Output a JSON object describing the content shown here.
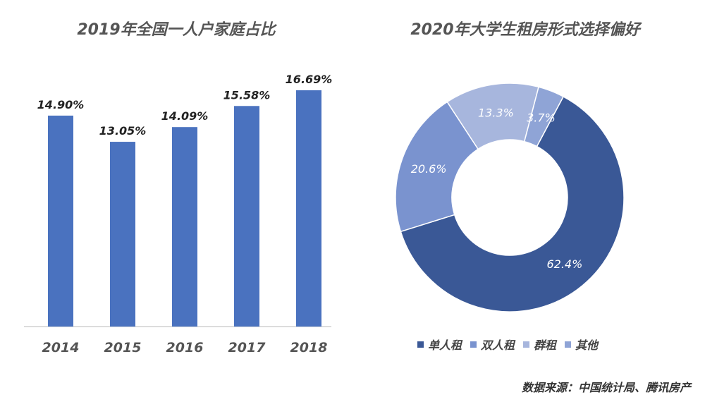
{
  "colors": {
    "bar": "#4A72BF",
    "axis": "#d0d0d0",
    "slices": [
      "#3A5896",
      "#7A93CF",
      "#A7B6DD",
      "#8FA4D6"
    ]
  },
  "chart_data": [
    {
      "type": "bar",
      "title": "2019年全国一人户家庭占比",
      "categories": [
        "2014",
        "2015",
        "2016",
        "2017",
        "2018"
      ],
      "values": [
        14.9,
        13.05,
        14.09,
        15.58,
        16.69
      ],
      "data_labels": [
        "14.90%",
        "13.05%",
        "14.09%",
        "15.58%",
        "16.69%"
      ],
      "ylim": [
        0,
        16.69
      ],
      "grid": false
    },
    {
      "type": "pie",
      "title": "2020年大学生租房形式选择偏好",
      "donut": true,
      "categories": [
        "单人租",
        "双人租",
        "群租",
        "其他"
      ],
      "values": [
        62.4,
        20.6,
        13.3,
        3.7
      ],
      "data_labels": [
        "62.4%",
        "20.6%",
        "13.3%",
        "3.7%"
      ],
      "legend": "bottom"
    }
  ],
  "source": "数据来源：中国统计局、腾讯房产"
}
